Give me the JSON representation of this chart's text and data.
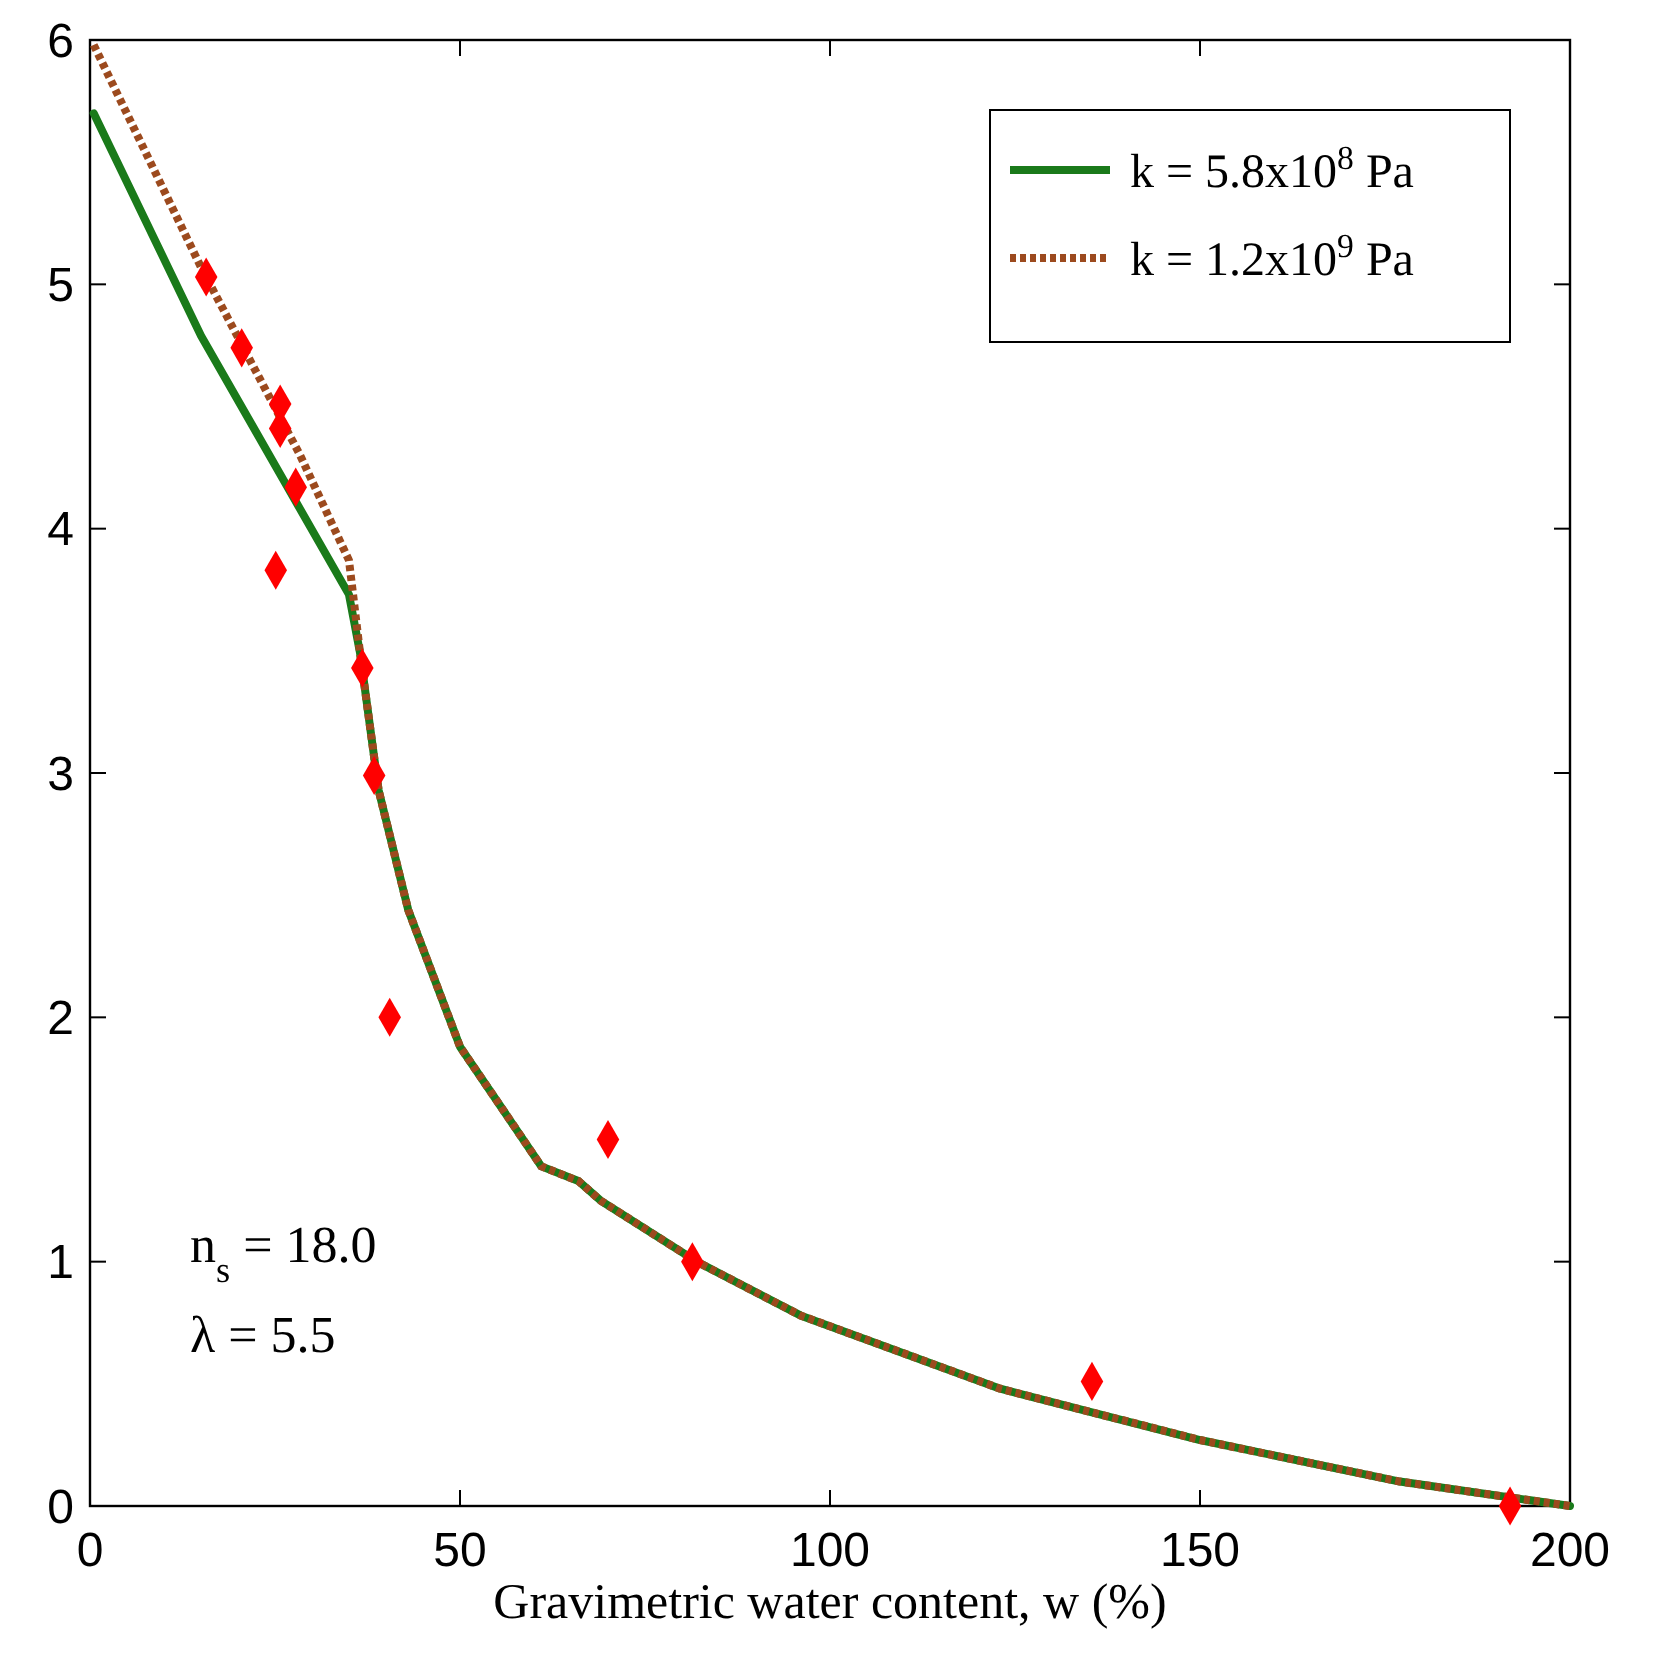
{
  "chart_data": {
    "type": "line",
    "xlabel": "Gravimetric water content, w (%)",
    "xlim": [
      0,
      200
    ],
    "ylim": [
      0,
      6
    ],
    "xticks": [
      0,
      50,
      100,
      150,
      200
    ],
    "yticks": [
      0,
      1,
      2,
      3,
      4,
      5,
      6
    ],
    "grid": false,
    "legend": "top right",
    "series": [
      {
        "name": "k = 5.8x10$^{8}$ Pa",
        "color": "#1a7a1a",
        "line_style": "solid",
        "marker": "none",
        "x": [
          0.5,
          15,
          35,
          36.5,
          39,
          43,
          50,
          61,
          66,
          69,
          82,
          96,
          123,
          150,
          177,
          200
        ],
        "values": [
          5.7,
          4.79,
          3.73,
          3.49,
          2.93,
          2.44,
          1.88,
          1.39,
          1.33,
          1.25,
          1.0,
          0.78,
          0.48,
          0.27,
          0.1,
          0
        ]
      },
      {
        "name": "k = 1.2x10$^{9}$ Pa",
        "color": "#9c4a1e",
        "line_style": "dotted",
        "marker": "none",
        "x": [
          0.5,
          15,
          28.4,
          35,
          36.5,
          39,
          43,
          50,
          61,
          66,
          69,
          82,
          96,
          123,
          150,
          177,
          200
        ],
        "values": [
          5.98,
          5.07,
          4.3,
          3.87,
          3.49,
          2.93,
          2.44,
          1.88,
          1.39,
          1.33,
          1.25,
          1.0,
          0.78,
          0.48,
          0.27,
          0.1,
          0
        ]
      },
      {
        "type": "scatter",
        "color": "#ff0000",
        "marker": "diamond",
        "x": [
          15.7,
          20.5,
          25.7,
          25.7,
          27.8,
          25.1,
          36.8,
          38.4,
          40.5,
          70,
          81.4,
          135.4,
          191.9
        ],
        "values": [
          5.03,
          4.74,
          4.51,
          4.41,
          4.17,
          3.83,
          3.43,
          2.99,
          2.0,
          1.5,
          1.0,
          0.51,
          0.0
        ]
      }
    ],
    "annotations": [
      "n$_{s}$ = 18.0",
      "λ = 5.5"
    ]
  }
}
